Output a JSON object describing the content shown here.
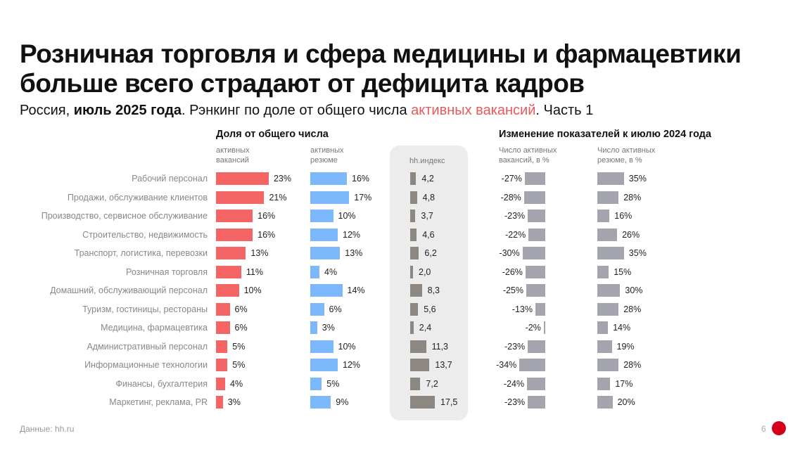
{
  "title_line1": "Розничная торговля и сфера медицины и фармацевтики",
  "title_line2": "больше всего страдают от дефицита кадров",
  "subtitle": {
    "part1": "Россия, ",
    "bold": "июль 2025 года",
    "part2": ". Рэнкинг по доле от общего числа ",
    "highlight": "активных вакансий",
    "part3": ". Часть 1"
  },
  "colors": {
    "vacancies": "#f46465",
    "resumes": "#7cb8fb",
    "hh_index": "#8c8780",
    "change": "#a3a4ad",
    "highlight": "#e8595a"
  },
  "chart_data": {
    "type": "bar",
    "categories": [
      "Рабочий персонал",
      "Продажи, обслуживание клиентов",
      "Производство, сервисное обслуживание",
      "Строительство, недвижимость",
      "Транспорт, логистика, перевозки",
      "Розничная торговля",
      "Домашний, обслуживающий персонал",
      "Туризм, гостиницы, рестораны",
      "Медицина, фармацевтика",
      "Административный персонал",
      "Информационные технологии",
      "Финансы, бухгалтерия",
      "Маркетинг, реклама, PR"
    ],
    "group1_title": "Доля от общего числа",
    "group2_title": "Изменение показателей к июлю 2024 года",
    "series": [
      {
        "name": "активных вакансий",
        "values": [
          23,
          21,
          16,
          16,
          13,
          11,
          10,
          6,
          6,
          5,
          5,
          4,
          3
        ],
        "labels": [
          "23%",
          "21%",
          "16%",
          "16%",
          "13%",
          "11%",
          "10%",
          "6%",
          "6%",
          "5%",
          "5%",
          "4%",
          "3%"
        ]
      },
      {
        "name": "активных резюме",
        "values": [
          16,
          17,
          10,
          12,
          13,
          4,
          14,
          6,
          3,
          10,
          12,
          5,
          9
        ],
        "labels": [
          "16%",
          "17%",
          "10%",
          "12%",
          "13%",
          "4%",
          "14%",
          "6%",
          "3%",
          "10%",
          "12%",
          "5%",
          "9%"
        ]
      },
      {
        "name": "hh.индекс",
        "values": [
          4.2,
          4.8,
          3.7,
          4.6,
          6.2,
          2.0,
          8.3,
          5.6,
          2.4,
          11.3,
          13.7,
          7.2,
          17.5
        ],
        "labels": [
          "4,2",
          "4,8",
          "3,7",
          "4,6",
          "6,2",
          "2,0",
          "8,3",
          "5,6",
          "2,4",
          "11,3",
          "13,7",
          "7,2",
          "17,5"
        ]
      },
      {
        "name": "Число активных вакансий, в %",
        "values": [
          -27,
          -28,
          -23,
          -22,
          -30,
          -26,
          -25,
          -13,
          -2,
          -23,
          -34,
          -24,
          -23
        ],
        "labels": [
          "-27%",
          "-28%",
          "-23%",
          "-22%",
          "-30%",
          "-26%",
          "-25%",
          "-13%",
          "-2%",
          "-23%",
          "-34%",
          "-24%",
          "-23%"
        ]
      },
      {
        "name": "Число активных резюме, в %",
        "values": [
          35,
          28,
          16,
          26,
          35,
          15,
          30,
          28,
          14,
          19,
          28,
          17,
          20
        ],
        "labels": [
          "35%",
          "28%",
          "16%",
          "26%",
          "35%",
          "15%",
          "30%",
          "28%",
          "14%",
          "19%",
          "28%",
          "17%",
          "20%"
        ]
      }
    ],
    "col_headers": [
      "активных\nвакансий",
      "активных\nрезюме",
      "hh.индекс",
      "Число активных\nвакансий, в %",
      "Число активных\nрезюме, в %"
    ]
  },
  "footer": {
    "source": "Данные: hh.ru",
    "page": "6",
    "logo": "hh"
  }
}
